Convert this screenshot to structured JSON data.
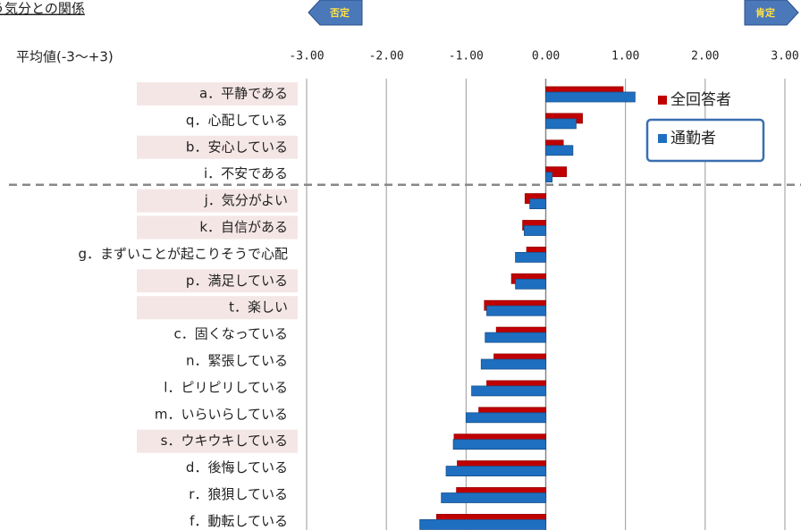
{
  "chart_data": {
    "type": "barh",
    "title": "う気分との関係",
    "axis_label": "平均値(-3〜+3)",
    "annotations": [
      "否定",
      "肯定"
    ],
    "categories": [
      "a．平静である",
      "q．心配している",
      "b．安心している",
      "i．不安である",
      "j．気分がよい",
      "k．自信がある",
      "g．まずいことが起こりそうで心配",
      "p．満足している",
      "t．楽しい",
      "c．固くなっている",
      "n．緊張している",
      "l．ピリピリしている",
      "m．いらいらしている",
      "s．ウキウキしている",
      "d．後悔している",
      "r．狼狽している",
      "f．動転している"
    ],
    "series": [
      {
        "name": "全回答者",
        "color": "#c00000",
        "values": [
          0.97,
          0.46,
          0.22,
          0.26,
          -0.26,
          -0.29,
          -0.24,
          -0.43,
          -0.77,
          -0.62,
          -0.65,
          -0.74,
          -0.84,
          -1.15,
          -1.11,
          -1.12,
          -1.37
        ]
      },
      {
        "name": "通勤者",
        "color": "#1f6fc0",
        "values": [
          1.12,
          0.38,
          0.34,
          0.08,
          -0.2,
          -0.27,
          -0.38,
          -0.38,
          -0.74,
          -0.76,
          -0.81,
          -0.93,
          -1.0,
          -1.16,
          -1.25,
          -1.31,
          -1.58
        ]
      }
    ],
    "xlim": [
      -3,
      3
    ],
    "xticks": [
      {
        "value": -3,
        "label": "-3.00"
      },
      {
        "value": -2,
        "label": "-2.00"
      },
      {
        "value": -1,
        "label": "-1.00"
      },
      {
        "value": 0,
        "label": "0.00"
      },
      {
        "value": 1,
        "label": "1.00"
      },
      {
        "value": 2,
        "label": "2.00"
      },
      {
        "value": 3,
        "label": "3.00"
      }
    ],
    "grid": true
  }
}
